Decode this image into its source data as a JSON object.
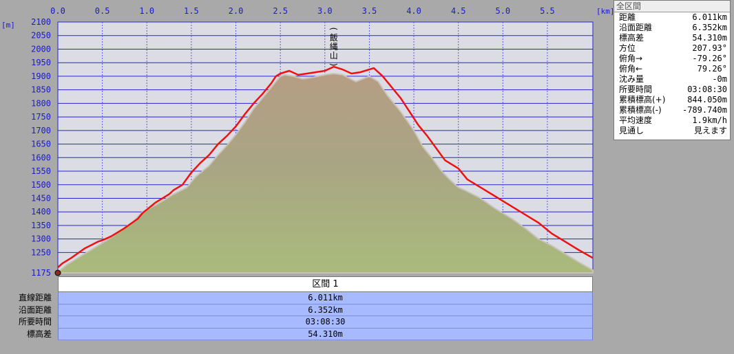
{
  "chart_data": {
    "type": "area",
    "xlabel": "",
    "ylabel": "",
    "x_unit": "[km]",
    "y_unit": "[m]",
    "xlim": [
      0,
      6.011
    ],
    "ylim": [
      1175,
      2100
    ],
    "x_ticks": [
      "0.0",
      "0.5",
      "1.0",
      "1.5",
      "2.0",
      "2.5",
      "3.0",
      "3.5",
      "4.0",
      "4.5",
      "5.0",
      "5.5"
    ],
    "y_ticks": [
      "2100",
      "2050",
      "2000",
      "1950",
      "1900",
      "1850",
      "1800",
      "1750",
      "1700",
      "1650",
      "1600",
      "1550",
      "1500",
      "1450",
      "1400",
      "1350",
      "1300",
      "1250",
      "1175"
    ],
    "grid": true,
    "annotations": [
      {
        "text": "(飯縄山)",
        "x": 3.1
      }
    ],
    "series": [
      {
        "x": [
          0,
          0.1,
          0.25,
          0.45,
          0.55,
          0.7,
          0.85,
          0.95,
          1.1,
          1.3,
          1.45,
          1.55,
          1.7,
          1.8,
          1.9,
          2.0,
          2.1,
          2.2,
          2.3,
          2.4,
          2.45,
          2.5,
          2.55,
          2.65,
          2.75,
          2.85,
          3.0,
          3.1,
          3.2,
          3.35,
          3.5,
          3.6,
          3.7,
          3.85,
          4.0,
          4.1,
          4.2,
          4.3,
          4.4,
          4.5,
          4.6,
          4.75,
          4.9,
          5.0,
          5.1,
          5.25,
          5.4,
          5.55,
          5.7,
          5.85,
          6.011
        ],
        "values": [
          1178,
          1205,
          1235,
          1275,
          1295,
          1330,
          1365,
          1400,
          1425,
          1465,
          1490,
          1530,
          1570,
          1610,
          1645,
          1685,
          1730,
          1780,
          1820,
          1860,
          1880,
          1900,
          1905,
          1900,
          1890,
          1895,
          1905,
          1910,
          1905,
          1880,
          1900,
          1880,
          1830,
          1770,
          1700,
          1640,
          1600,
          1555,
          1520,
          1490,
          1475,
          1450,
          1415,
          1395,
          1375,
          1340,
          1300,
          1275,
          1245,
          1215,
          1185
        ]
      },
      {
        "x": [
          0,
          0.05,
          0.15,
          0.3,
          0.45,
          0.5,
          0.6,
          0.75,
          0.9,
          0.95,
          1.1,
          1.25,
          1.3,
          1.4,
          1.5,
          1.6,
          1.7,
          1.8,
          1.9,
          2.0,
          2.1,
          2.2,
          2.3,
          2.4,
          2.45,
          2.5,
          2.6,
          2.7,
          2.8,
          3.0,
          3.1,
          3.2,
          3.3,
          3.4,
          3.55,
          3.65,
          3.75,
          3.85,
          3.95,
          4.05,
          4.15,
          4.25,
          4.35,
          4.5,
          4.6,
          4.75,
          4.9,
          5.0,
          5.1,
          5.25,
          5.4,
          5.55,
          5.7,
          5.85,
          6.011
        ],
        "values": [
          1195,
          1210,
          1230,
          1265,
          1290,
          1295,
          1310,
          1340,
          1375,
          1395,
          1435,
          1465,
          1480,
          1500,
          1545,
          1580,
          1610,
          1650,
          1680,
          1715,
          1760,
          1800,
          1835,
          1875,
          1900,
          1910,
          1920,
          1905,
          1910,
          1920,
          1935,
          1925,
          1910,
          1915,
          1930,
          1900,
          1860,
          1820,
          1770,
          1720,
          1680,
          1635,
          1590,
          1560,
          1520,
          1490,
          1460,
          1440,
          1420,
          1390,
          1360,
          1320,
          1290,
          1260,
          1230
        ]
      }
    ]
  },
  "section_label": "区間 1",
  "rows": [
    {
      "label": "直線距離",
      "value": "6.011km"
    },
    {
      "label": "沿面距離",
      "value": "6.352km"
    },
    {
      "label": "所要時間",
      "value": "03:08:30"
    },
    {
      "label": "標高差",
      "value": "54.310m"
    }
  ],
  "panel": {
    "title": "全区間",
    "rows": [
      {
        "label": "距離",
        "value": "6.011km"
      },
      {
        "label": "沿面距離",
        "value": "6.352km"
      },
      {
        "label": "標高差",
        "value": "54.310m"
      },
      {
        "label": "方位",
        "value": "207.93°"
      },
      {
        "label": "俯角→",
        "value": "-79.26°"
      },
      {
        "label": "俯角←",
        "value": "79.26°"
      },
      {
        "label": "沈み量",
        "value": "-0m"
      },
      {
        "label": "所要時間",
        "value": "03:08:30"
      },
      {
        "label": "累積標高(+)",
        "value": "844.050m"
      },
      {
        "label": "累積標高(-)",
        "value": "-789.740m"
      },
      {
        "label": "平均速度",
        "value": "1.9km/h"
      },
      {
        "label": "見通し",
        "value": "見えます"
      }
    ]
  },
  "colors": {
    "plot_bg": "#dcdce4",
    "grid_major": "#2424d0",
    "grid_minor": "#5a5ae0",
    "terrain_fill": "#a9bb7c",
    "terrain_top": "#b69e84",
    "route_line": "#ee1111",
    "row_bg": "#a7b9ff"
  }
}
